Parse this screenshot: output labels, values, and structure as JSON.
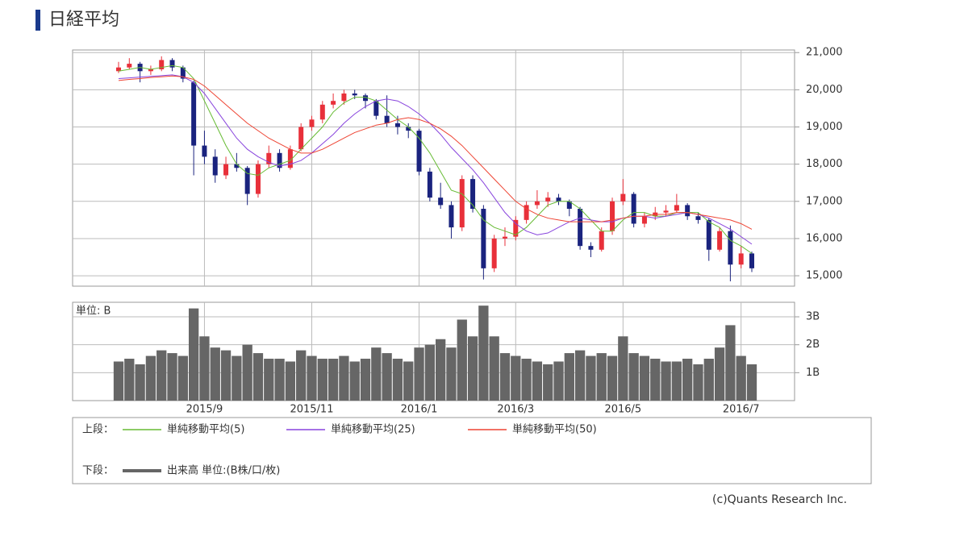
{
  "header": {
    "title": "日経平均"
  },
  "footer": "(c)Quants Research Inc.",
  "chart_data": [
    {
      "type": "candlestick",
      "legend_label": "上段：",
      "up_color": "#e8303a",
      "down_color": "#1a237e",
      "ylim": [
        14720,
        21070
      ],
      "yticks": [
        {
          "value": 15000,
          "label": "15,000"
        },
        {
          "value": 16000,
          "label": "16,000"
        },
        {
          "value": 17000,
          "label": "17,000"
        },
        {
          "value": 18000,
          "label": "18,000"
        },
        {
          "value": 19000,
          "label": "19,000"
        },
        {
          "value": 20000,
          "label": "20,000"
        },
        {
          "value": 21000,
          "label": "21,000"
        }
      ],
      "grid": true,
      "open": [
        20500,
        20600,
        20700,
        20500,
        20550,
        20800,
        20600,
        20200,
        18500,
        18200,
        17700,
        18000,
        17900,
        17200,
        18000,
        18300,
        17900,
        18400,
        19000,
        19200,
        19600,
        19700,
        19900,
        19850,
        19700,
        19300,
        19100,
        19000,
        18900,
        17800,
        17100,
        16900,
        16300,
        17600,
        16800,
        15200,
        16000,
        16050,
        16500,
        16900,
        17000,
        17100,
        17000,
        16800,
        15800,
        15700,
        16200,
        17000,
        17200,
        16400,
        16600,
        16700,
        16750,
        16900,
        16600,
        16500,
        15700,
        16200,
        15300,
        15600
      ],
      "high": [
        20750,
        20850,
        20750,
        20650,
        20900,
        20850,
        20650,
        20250,
        18900,
        18400,
        18200,
        18300,
        17950,
        18100,
        18500,
        18400,
        18500,
        19100,
        19300,
        19700,
        19900,
        20000,
        20000,
        19900,
        19750,
        19850,
        19300,
        19100,
        18950,
        17900,
        17500,
        17000,
        17700,
        17700,
        16900,
        16100,
        16300,
        16600,
        17000,
        17300,
        17250,
        17200,
        17050,
        16850,
        15900,
        16300,
        17100,
        17600,
        17250,
        16700,
        16850,
        16900,
        17200,
        16950,
        16700,
        16550,
        16300,
        16350,
        15800,
        15650
      ],
      "low": [
        20450,
        20550,
        20200,
        20400,
        20500,
        20500,
        20200,
        17700,
        18000,
        17500,
        17600,
        17800,
        16900,
        17100,
        17900,
        17800,
        17850,
        18350,
        18900,
        19100,
        19500,
        19600,
        19750,
        19500,
        19200,
        19000,
        18800,
        18700,
        17700,
        17000,
        16800,
        16000,
        16200,
        16700,
        14900,
        15100,
        15800,
        15950,
        16400,
        16800,
        16850,
        16900,
        16600,
        15700,
        15500,
        15650,
        16100,
        16900,
        16300,
        16300,
        16500,
        16600,
        16700,
        16500,
        16400,
        15400,
        15650,
        14850,
        15200,
        15100
      ],
      "close": [
        20600,
        20700,
        20500,
        20550,
        20800,
        20600,
        20300,
        18500,
        18200,
        17700,
        18000,
        17900,
        17200,
        18000,
        18300,
        17900,
        18400,
        19000,
        19200,
        19600,
        19700,
        19900,
        19850,
        19700,
        19300,
        19100,
        19000,
        18900,
        17800,
        17100,
        16900,
        16300,
        17600,
        16800,
        15200,
        16000,
        16050,
        16500,
        16900,
        17000,
        17100,
        17000,
        16800,
        15800,
        15700,
        16200,
        17000,
        17200,
        16400,
        16600,
        16700,
        16750,
        16900,
        16600,
        16500,
        15700,
        16200,
        15300,
        15600,
        15200
      ],
      "series": [
        {
          "name": "単純移動平均(5)",
          "color": "#66bb33",
          "values": [
            20500,
            20550,
            20600,
            20550,
            20600,
            20650,
            20600,
            20300,
            19700,
            19100,
            18500,
            18000,
            17750,
            17700,
            17900,
            18000,
            18100,
            18400,
            18700,
            19000,
            19400,
            19650,
            19800,
            19800,
            19700,
            19450,
            19200,
            19000,
            18700,
            18300,
            17800,
            17300,
            17200,
            16900,
            16500,
            16300,
            16200,
            16100,
            16300,
            16600,
            16900,
            17000,
            17000,
            16800,
            16500,
            16200,
            16200,
            16500,
            16700,
            16700,
            16600,
            16600,
            16700,
            16700,
            16700,
            16450,
            16300,
            15950,
            15800,
            15600
          ]
        },
        {
          "name": "単純移動平均(25)",
          "color": "#8844dd",
          "values": [
            20300,
            20320,
            20340,
            20360,
            20380,
            20400,
            20350,
            20200,
            19900,
            19500,
            19100,
            18700,
            18400,
            18200,
            18050,
            17950,
            18000,
            18100,
            18300,
            18550,
            18800,
            19100,
            19350,
            19550,
            19700,
            19750,
            19700,
            19550,
            19350,
            19100,
            18800,
            18450,
            18150,
            17850,
            17500,
            17100,
            16700,
            16400,
            16200,
            16100,
            16150,
            16300,
            16450,
            16550,
            16500,
            16450,
            16450,
            16550,
            16600,
            16600,
            16550,
            16600,
            16650,
            16700,
            16650,
            16550,
            16400,
            16250,
            16050,
            15850
          ]
        },
        {
          "name": "単純移動平均(50)",
          "color": "#ee4433",
          "values": [
            20250,
            20280,
            20300,
            20330,
            20350,
            20370,
            20350,
            20280,
            20100,
            19850,
            19600,
            19350,
            19100,
            18900,
            18700,
            18550,
            18400,
            18300,
            18300,
            18400,
            18550,
            18700,
            18850,
            18950,
            19050,
            19100,
            19200,
            19250,
            19200,
            19100,
            18950,
            18750,
            18500,
            18200,
            17900,
            17600,
            17300,
            17000,
            16800,
            16650,
            16550,
            16500,
            16450,
            16450,
            16450,
            16450,
            16500,
            16550,
            16600,
            16600,
            16650,
            16650,
            16700,
            16700,
            16650,
            16600,
            16550,
            16500,
            16400,
            16250
          ]
        }
      ]
    },
    {
      "type": "bar",
      "legend_label": "下段：",
      "unit_label": "単位: B",
      "categories": [
        null,
        null,
        null,
        null,
        null,
        null,
        null,
        null,
        "2015/9",
        null,
        null,
        null,
        null,
        null,
        null,
        null,
        null,
        null,
        "2015/11",
        null,
        null,
        null,
        null,
        null,
        null,
        null,
        null,
        null,
        "2016/1",
        null,
        null,
        null,
        null,
        null,
        null,
        null,
        null,
        "2016/3",
        null,
        null,
        null,
        null,
        null,
        null,
        null,
        null,
        null,
        "2016/5",
        null,
        null,
        null,
        null,
        null,
        null,
        null,
        null,
        null,
        null,
        "2016/7",
        null
      ],
      "ylim": [
        0,
        3.52
      ],
      "yticks": [
        {
          "value": 1,
          "label": "1B"
        },
        {
          "value": 2,
          "label": "2B"
        },
        {
          "value": 3,
          "label": "3B"
        }
      ],
      "grid": true,
      "series": [
        {
          "name": "出来高 単位:(B株/口/枚)",
          "color": "#666666",
          "values": [
            1.4,
            1.5,
            1.3,
            1.6,
            1.8,
            1.7,
            1.6,
            3.3,
            2.3,
            1.9,
            1.8,
            1.6,
            2.0,
            1.7,
            1.5,
            1.5,
            1.4,
            1.8,
            1.6,
            1.5,
            1.5,
            1.6,
            1.4,
            1.5,
            1.9,
            1.7,
            1.5,
            1.4,
            1.9,
            2.0,
            2.2,
            1.9,
            2.9,
            2.3,
            3.4,
            2.3,
            1.7,
            1.6,
            1.5,
            1.4,
            1.3,
            1.4,
            1.7,
            1.8,
            1.6,
            1.7,
            1.6,
            2.3,
            1.7,
            1.6,
            1.5,
            1.4,
            1.4,
            1.5,
            1.3,
            1.5,
            1.9,
            2.7,
            1.6,
            1.3
          ]
        }
      ]
    }
  ]
}
